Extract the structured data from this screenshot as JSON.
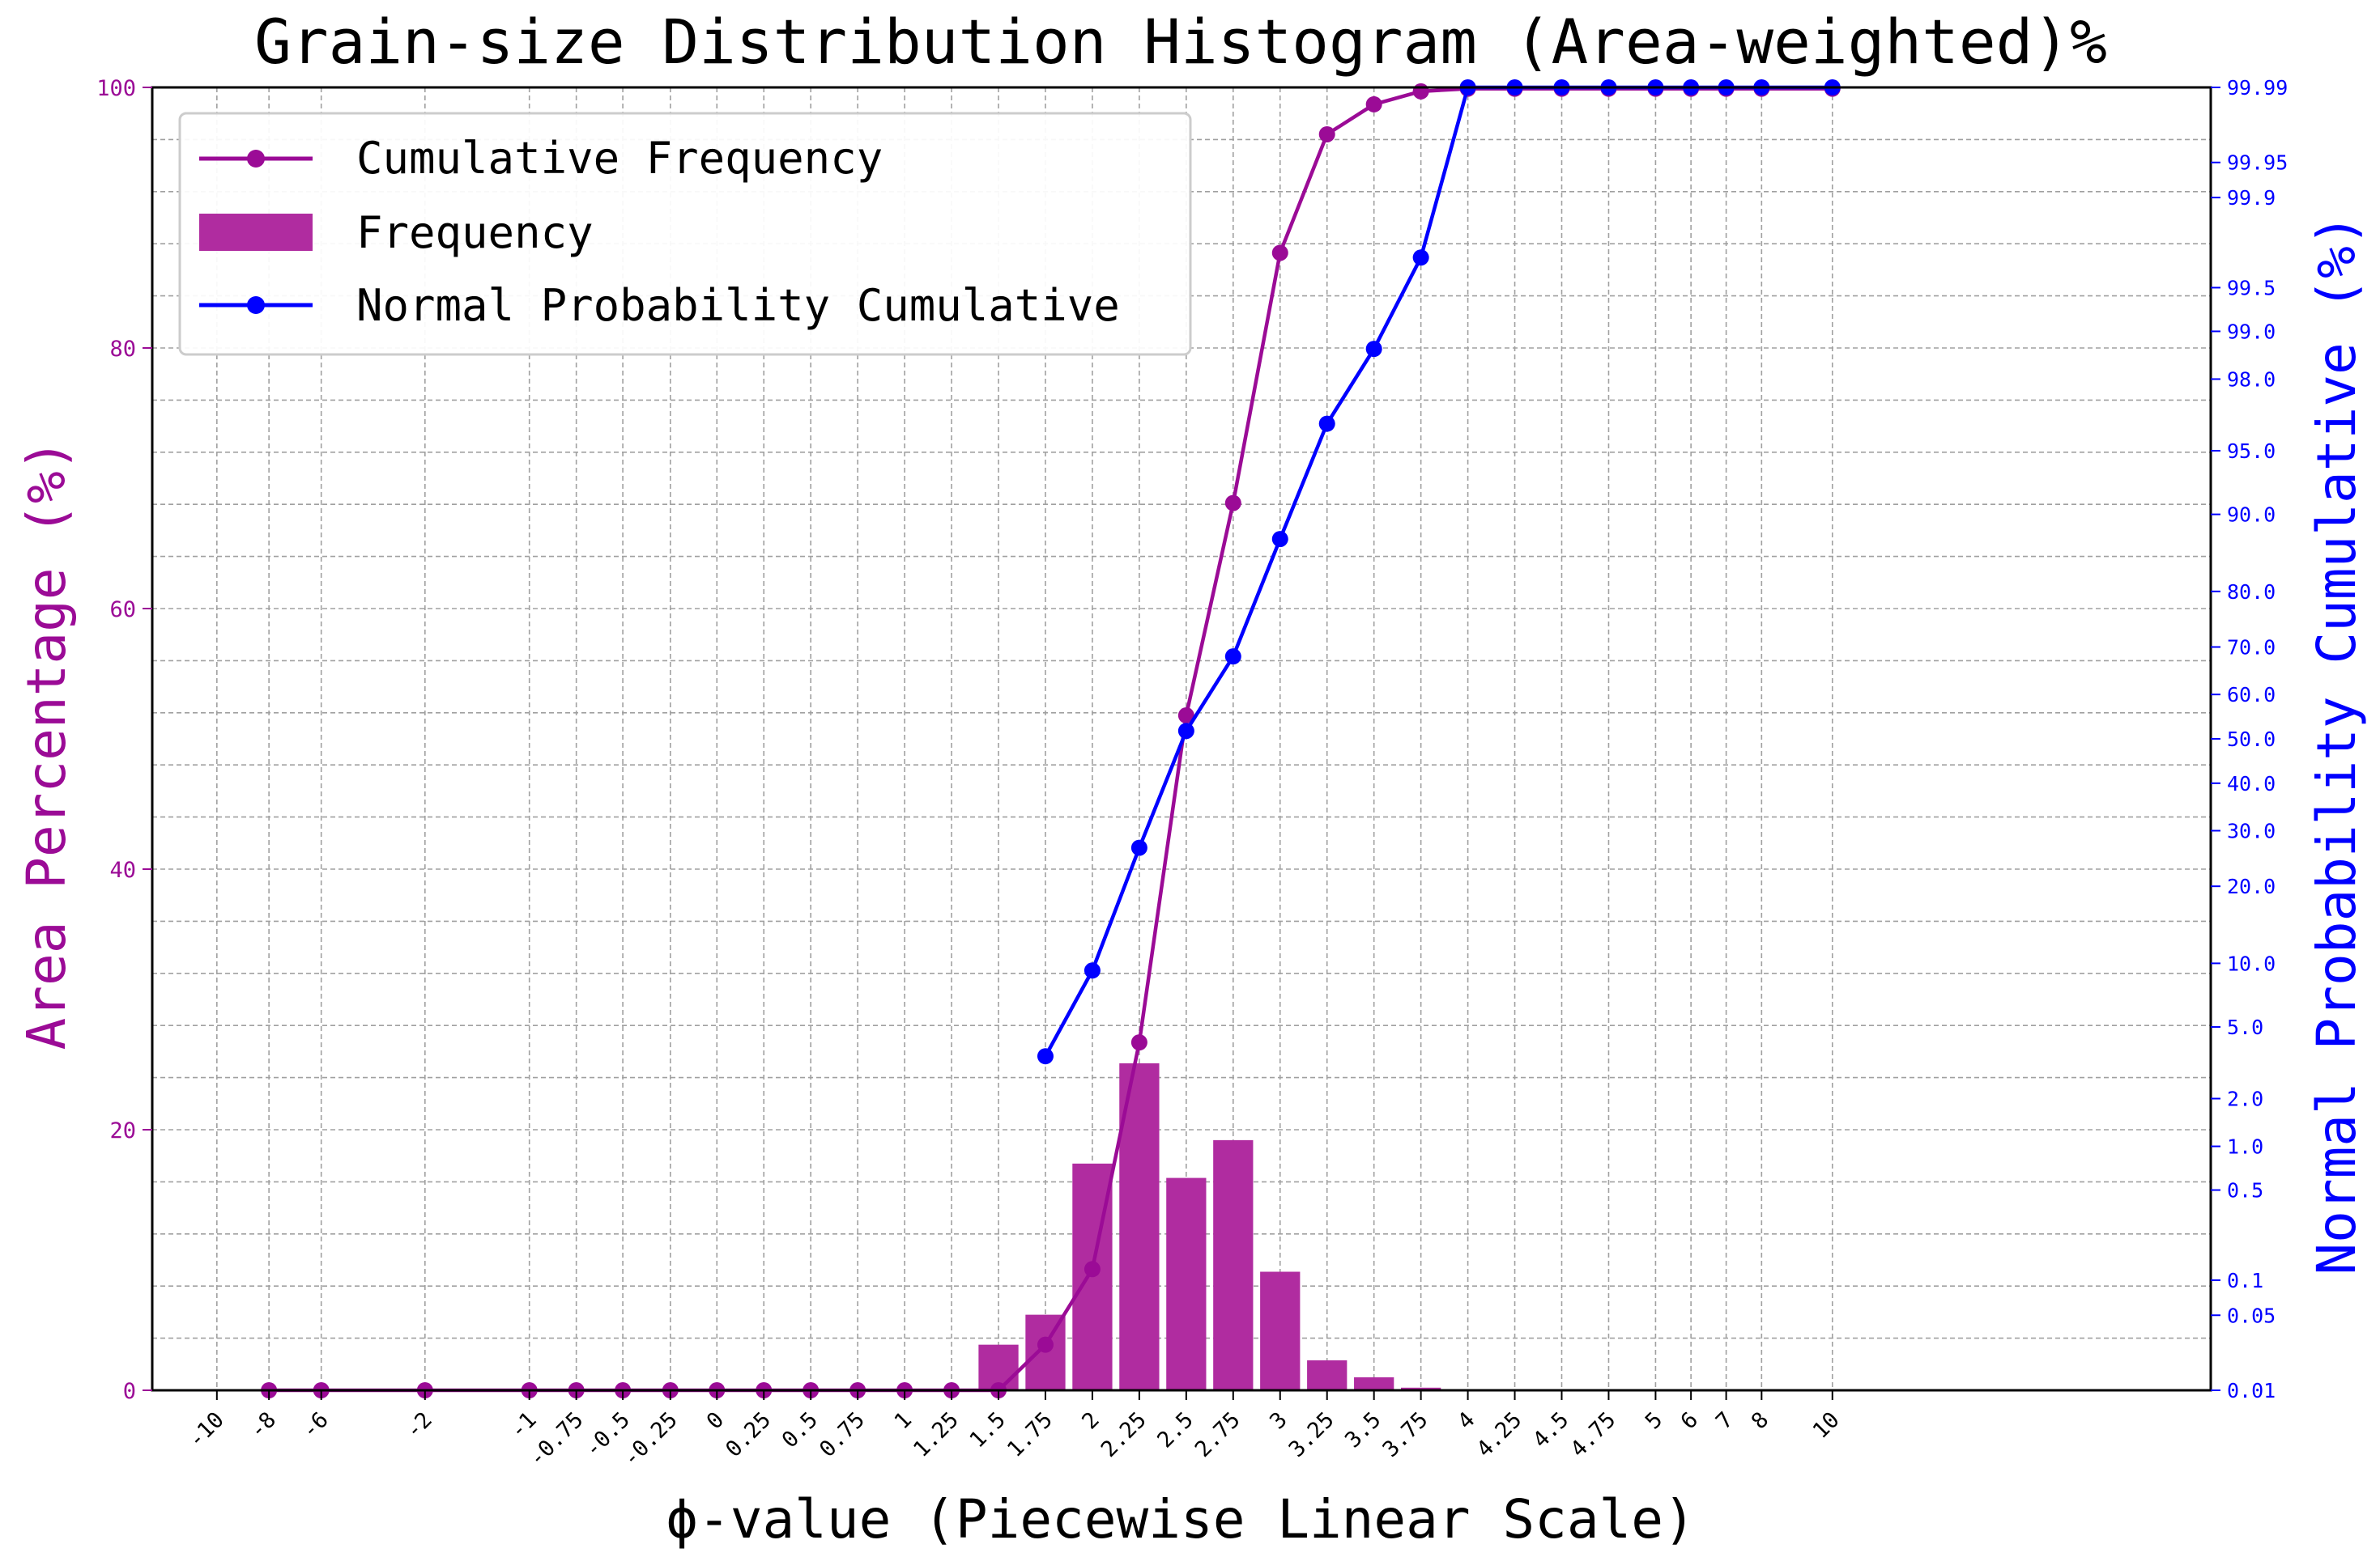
{
  "chart_data": {
    "type": "bar",
    "title": "Grain-size Distribution Histogram (Area-weighted)%",
    "xlabel": "ϕ-value (Piecewise Linear Scale)",
    "ylabel": "Area Percentage (%)",
    "ylabel_right": "Normal Probability Cumulative (%)",
    "ylim": [
      0,
      100
    ],
    "y_ticks": [
      "0",
      "20",
      "40",
      "60",
      "80",
      "100"
    ],
    "y_right_ticks": [
      "0.01",
      "0.05",
      "0.1",
      "0.5",
      "1.0",
      "2.0",
      "5.0",
      "10.0",
      "20.0",
      "30.0",
      "40.0",
      "50.0",
      "60.0",
      "70.0",
      "80.0",
      "90.0",
      "95.0",
      "98.0",
      "99.0",
      "99.5",
      "99.9",
      "99.95",
      "99.99"
    ],
    "x_ticks": [
      "-10",
      "-8",
      "-6",
      "-2",
      "-1",
      "-0.75",
      "-0.5",
      "-0.25",
      "0",
      "0.25",
      "0.5",
      "0.75",
      "1",
      "1.25",
      "1.5",
      "1.75",
      "2",
      "2.25",
      "2.5",
      "2.75",
      "3",
      "3.25",
      "3.5",
      "3.75",
      "4",
      "4.25",
      "4.5",
      "4.75",
      "5",
      "6",
      "7",
      "8",
      "10"
    ],
    "x_scale": "piecewise linear",
    "grid": true,
    "legend_position": "top-left",
    "colors": {
      "frequency": "#b02ca0",
      "cumulative": "#9b0b96",
      "normal": "#0000ff",
      "grid": "#a0a0a0"
    },
    "series": [
      {
        "name": "Frequency",
        "type": "bar",
        "x": [
          "1.5",
          "1.75",
          "2",
          "2.25",
          "2.5",
          "2.75",
          "3",
          "3.25",
          "3.5",
          "3.75"
        ],
        "values": [
          3.5,
          5.8,
          17.4,
          25.1,
          16.3,
          19.2,
          9.1,
          2.3,
          1.0,
          0.2
        ]
      },
      {
        "name": "Cumulative Frequency",
        "type": "line",
        "x": [
          "-8",
          "-6",
          "-2",
          "-1",
          "-0.75",
          "-0.5",
          "-0.25",
          "0",
          "0.25",
          "0.5",
          "0.75",
          "1",
          "1.25",
          "1.5",
          "1.75",
          "2",
          "2.25",
          "2.5",
          "2.75",
          "3",
          "3.25",
          "3.5",
          "3.75",
          "4",
          "4.25",
          "4.5",
          "4.75",
          "5",
          "6",
          "7",
          "8",
          "10"
        ],
        "values": [
          0,
          0,
          0,
          0,
          0,
          0,
          0,
          0,
          0,
          0,
          0,
          0,
          0,
          0,
          3.5,
          9.3,
          26.7,
          51.8,
          68.1,
          87.3,
          96.4,
          98.7,
          99.7,
          99.9,
          99.9,
          99.9,
          99.9,
          99.9,
          99.9,
          99.9,
          99.9,
          99.9
        ]
      },
      {
        "name": "Normal Probability Cumulative",
        "type": "line",
        "axis": "right",
        "x": [
          "1.75",
          "2",
          "2.25",
          "2.5",
          "2.75",
          "3",
          "3.25",
          "3.5",
          "3.75",
          "4",
          "4.25",
          "4.5",
          "4.75",
          "5",
          "6",
          "7",
          "8",
          "10"
        ],
        "values": [
          3.5,
          9.3,
          26.7,
          51.8,
          68.1,
          87.3,
          96.4,
          98.7,
          99.7,
          99.99,
          99.99,
          99.99,
          99.99,
          99.99,
          99.99,
          99.99,
          99.99,
          99.99
        ]
      }
    ]
  }
}
